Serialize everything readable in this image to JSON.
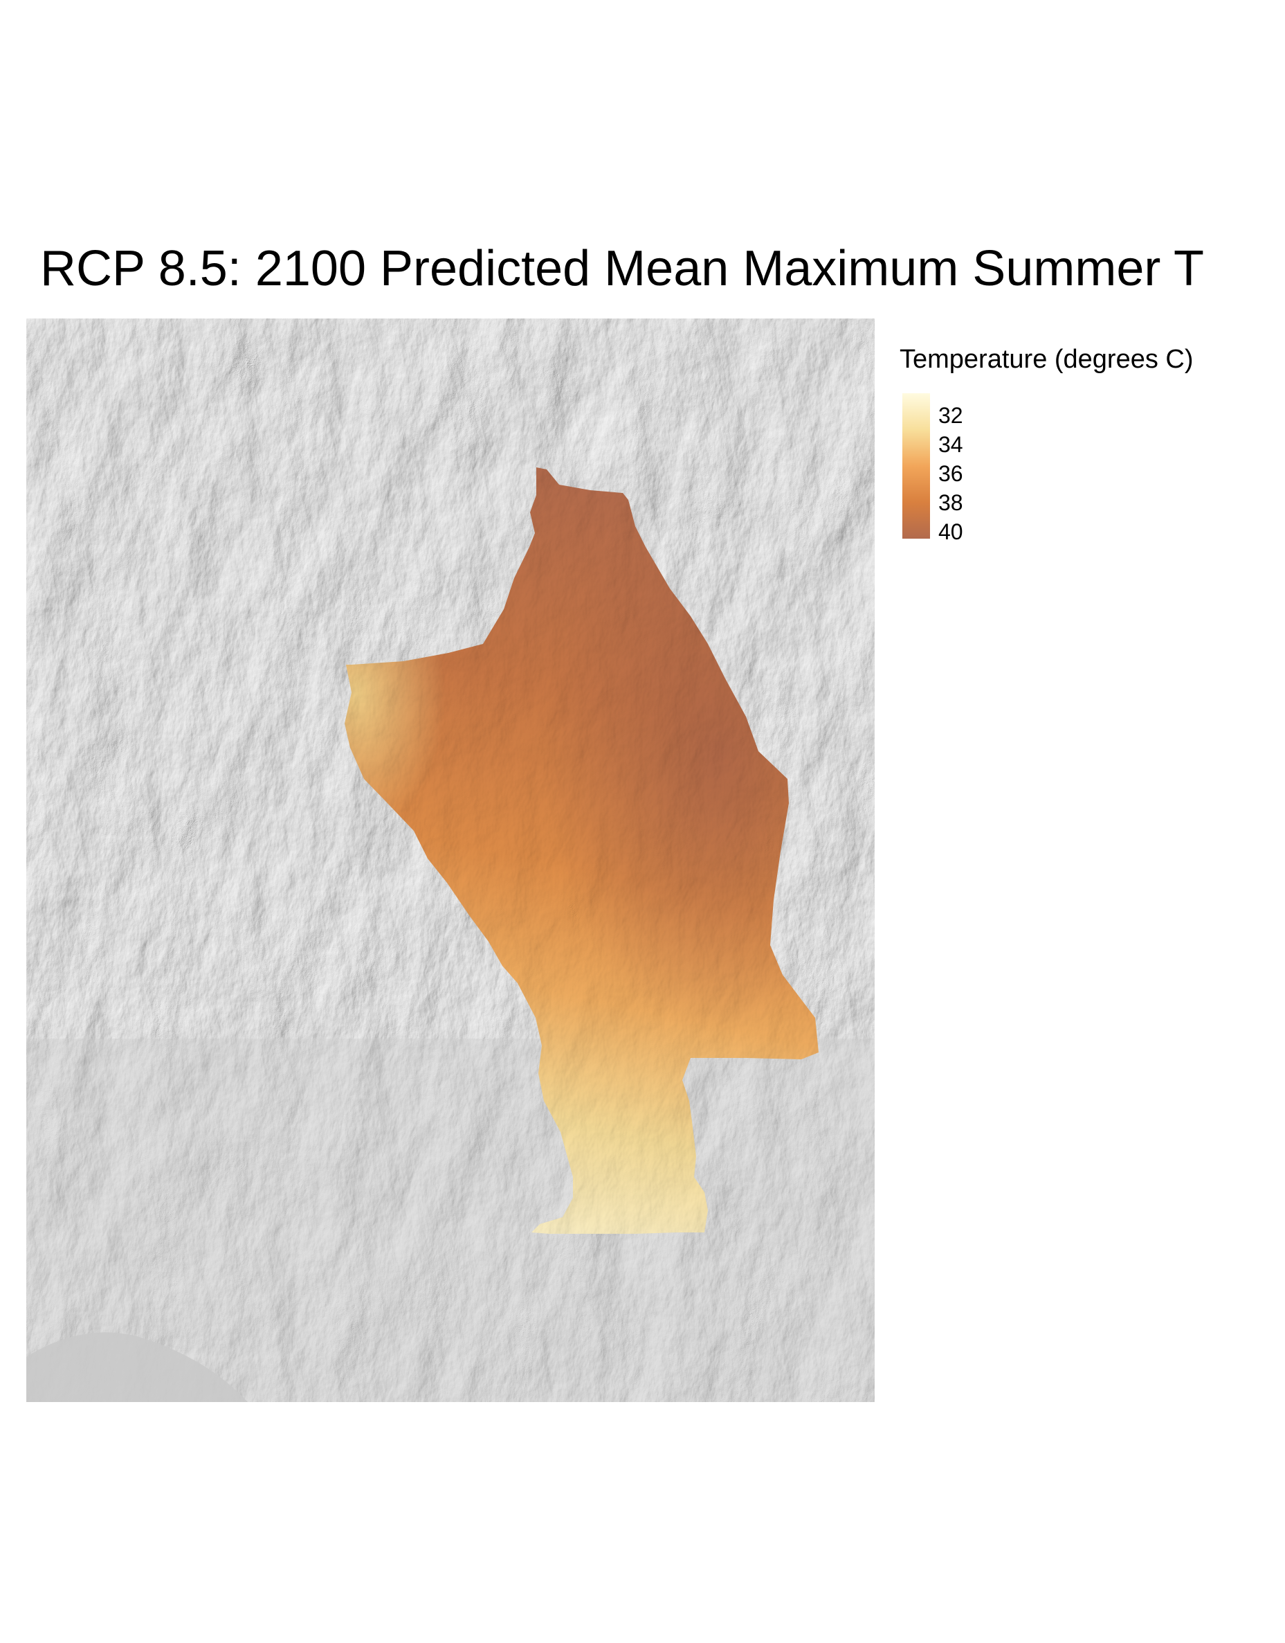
{
  "title": "RCP 8.5: 2100 Predicted Mean Maximum Summer T",
  "legend": {
    "title": "Temperature (degrees C)",
    "ticks": [
      "32",
      "34",
      "36",
      "38",
      "40"
    ],
    "colors": [
      "#fffbe0",
      "#f8df9b",
      "#f2a65a",
      "#d9803f",
      "#b26a4d"
    ]
  },
  "map": {
    "background_color": "#c8c8c8",
    "layer": "hillshade",
    "region": "county"
  }
}
